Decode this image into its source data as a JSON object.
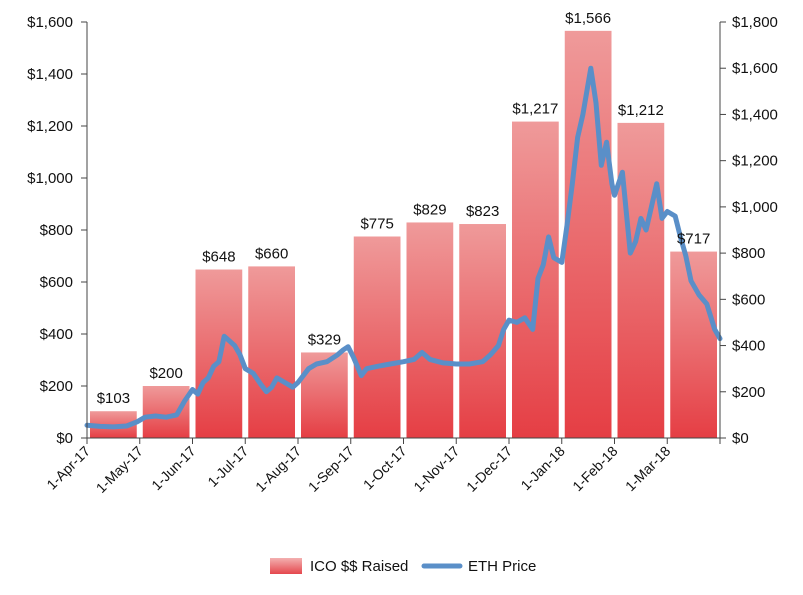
{
  "chart_data": {
    "type": "bar",
    "categories": [
      "1-Apr-17",
      "1-May-17",
      "1-Jun-17",
      "1-Jul-17",
      "1-Aug-17",
      "1-Sep-17",
      "1-Oct-17",
      "1-Nov-17",
      "1-Dec-17",
      "1-Jan-18",
      "1-Feb-18",
      "1-Mar-18"
    ],
    "series": [
      {
        "name": "ICO $$ Raised",
        "type": "bar",
        "axis": "left",
        "color": "#e8474d",
        "values": [
          103,
          200,
          648,
          660,
          329,
          775,
          829,
          823,
          1217,
          1566,
          1212,
          717
        ],
        "data_labels": [
          "$103",
          "$200",
          "$648",
          "$660",
          "$329",
          "$775",
          "$829",
          "$823",
          "$1,217",
          "$1,566",
          "$1,212",
          "$717"
        ]
      },
      {
        "name": "ETH Price",
        "type": "line",
        "axis": "right",
        "color": "#5a8fc8",
        "points": [
          {
            "m": 0.0,
            "v": 55
          },
          {
            "m": 0.25,
            "v": 50
          },
          {
            "m": 0.5,
            "v": 48
          },
          {
            "m": 0.75,
            "v": 52
          },
          {
            "m": 0.95,
            "v": 70
          },
          {
            "m": 1.1,
            "v": 90
          },
          {
            "m": 1.3,
            "v": 95
          },
          {
            "m": 1.5,
            "v": 90
          },
          {
            "m": 1.7,
            "v": 100
          },
          {
            "m": 1.85,
            "v": 160
          },
          {
            "m": 2.0,
            "v": 210
          },
          {
            "m": 2.1,
            "v": 190
          },
          {
            "m": 2.2,
            "v": 240
          },
          {
            "m": 2.3,
            "v": 260
          },
          {
            "m": 2.4,
            "v": 310
          },
          {
            "m": 2.5,
            "v": 330
          },
          {
            "m": 2.6,
            "v": 440
          },
          {
            "m": 2.7,
            "v": 420
          },
          {
            "m": 2.8,
            "v": 400
          },
          {
            "m": 2.9,
            "v": 360
          },
          {
            "m": 3.0,
            "v": 300
          },
          {
            "m": 3.15,
            "v": 280
          },
          {
            "m": 3.3,
            "v": 230
          },
          {
            "m": 3.4,
            "v": 200
          },
          {
            "m": 3.5,
            "v": 220
          },
          {
            "m": 3.6,
            "v": 260
          },
          {
            "m": 3.75,
            "v": 240
          },
          {
            "m": 3.9,
            "v": 220
          },
          {
            "m": 4.0,
            "v": 240
          },
          {
            "m": 4.2,
            "v": 300
          },
          {
            "m": 4.35,
            "v": 320
          },
          {
            "m": 4.55,
            "v": 330
          },
          {
            "m": 4.75,
            "v": 360
          },
          {
            "m": 4.85,
            "v": 380
          },
          {
            "m": 4.95,
            "v": 395
          },
          {
            "m": 5.05,
            "v": 350
          },
          {
            "m": 5.2,
            "v": 270
          },
          {
            "m": 5.3,
            "v": 300
          },
          {
            "m": 5.5,
            "v": 310
          },
          {
            "m": 5.75,
            "v": 320
          },
          {
            "m": 6.0,
            "v": 330
          },
          {
            "m": 6.2,
            "v": 340
          },
          {
            "m": 6.35,
            "v": 370
          },
          {
            "m": 6.5,
            "v": 340
          },
          {
            "m": 6.75,
            "v": 325
          },
          {
            "m": 7.0,
            "v": 320
          },
          {
            "m": 7.25,
            "v": 320
          },
          {
            "m": 7.5,
            "v": 330
          },
          {
            "m": 7.65,
            "v": 360
          },
          {
            "m": 7.8,
            "v": 400
          },
          {
            "m": 7.9,
            "v": 470
          },
          {
            "m": 8.0,
            "v": 510
          },
          {
            "m": 8.15,
            "v": 500
          },
          {
            "m": 8.3,
            "v": 520
          },
          {
            "m": 8.45,
            "v": 470
          },
          {
            "m": 8.55,
            "v": 690
          },
          {
            "m": 8.65,
            "v": 750
          },
          {
            "m": 8.75,
            "v": 870
          },
          {
            "m": 8.85,
            "v": 780
          },
          {
            "m": 9.0,
            "v": 760
          },
          {
            "m": 9.1,
            "v": 920
          },
          {
            "m": 9.2,
            "v": 1100
          },
          {
            "m": 9.3,
            "v": 1300
          },
          {
            "m": 9.4,
            "v": 1400
          },
          {
            "m": 9.55,
            "v": 1600
          },
          {
            "m": 9.65,
            "v": 1450
          },
          {
            "m": 9.75,
            "v": 1180
          },
          {
            "m": 9.85,
            "v": 1280
          },
          {
            "m": 9.95,
            "v": 1100
          },
          {
            "m": 10.0,
            "v": 1050
          },
          {
            "m": 10.15,
            "v": 1150
          },
          {
            "m": 10.3,
            "v": 800
          },
          {
            "m": 10.4,
            "v": 850
          },
          {
            "m": 10.5,
            "v": 950
          },
          {
            "m": 10.6,
            "v": 900
          },
          {
            "m": 10.7,
            "v": 1000
          },
          {
            "m": 10.8,
            "v": 1100
          },
          {
            "m": 10.9,
            "v": 950
          },
          {
            "m": 11.0,
            "v": 980
          },
          {
            "m": 11.15,
            "v": 960
          },
          {
            "m": 11.25,
            "v": 870
          },
          {
            "m": 11.35,
            "v": 790
          },
          {
            "m": 11.45,
            "v": 680
          },
          {
            "m": 11.6,
            "v": 620
          },
          {
            "m": 11.75,
            "v": 580
          },
          {
            "m": 11.9,
            "v": 470
          },
          {
            "m": 12.0,
            "v": 430
          }
        ]
      }
    ],
    "y_left": {
      "ylim": [
        0,
        1600
      ],
      "ticks": [
        0,
        200,
        400,
        600,
        800,
        1000,
        1200,
        1400,
        1600
      ],
      "tick_labels": [
        "$0",
        "$200",
        "$400",
        "$600",
        "$800",
        "$1,000",
        "$1,200",
        "$1,400",
        "$1,600"
      ]
    },
    "y_right": {
      "ylim": [
        0,
        1800
      ],
      "ticks": [
        0,
        200,
        400,
        600,
        800,
        1000,
        1200,
        1400,
        1600,
        1800
      ],
      "tick_labels": [
        "$0",
        "$200",
        "$400",
        "$600",
        "$800",
        "$1,000",
        "$1,200",
        "$1,400",
        "$1,600",
        "$1,800"
      ]
    },
    "title": "",
    "xlabel": "",
    "ylabel": "",
    "grid": false,
    "legend": {
      "position": "bottom",
      "items": [
        "ICO $$ Raised",
        "ETH Price"
      ]
    }
  }
}
